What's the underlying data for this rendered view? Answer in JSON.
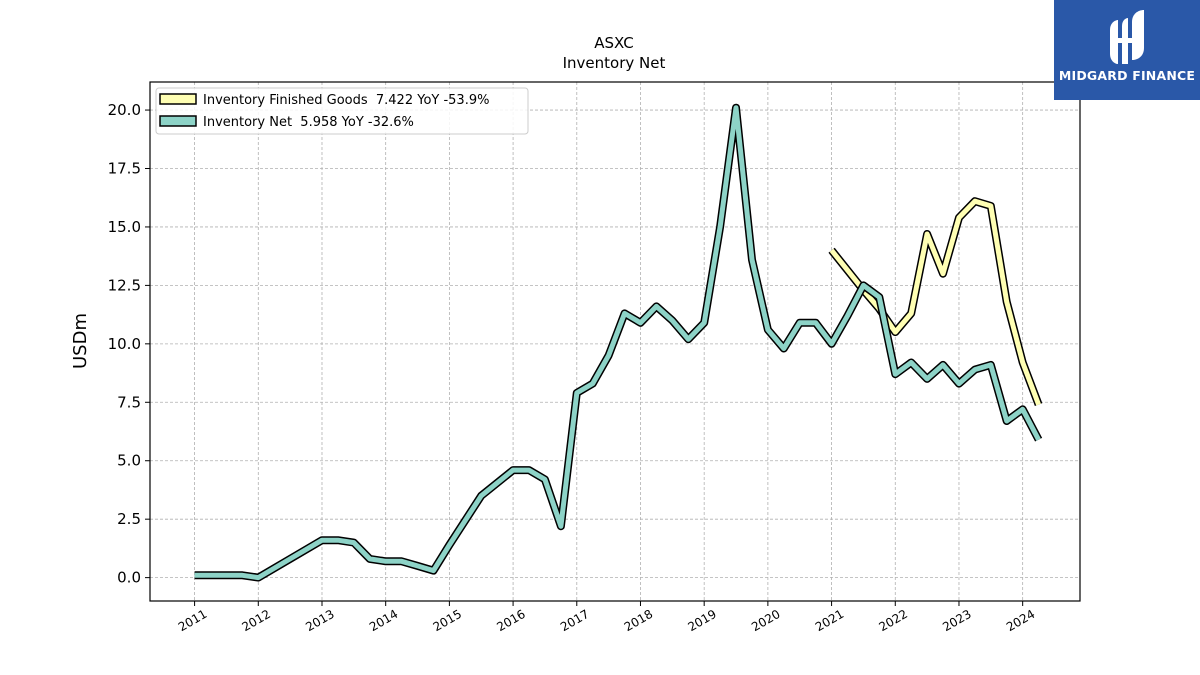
{
  "chart_data": {
    "type": "line",
    "title": "ASXC",
    "subtitle": "Inventory Net",
    "xlabel": "",
    "ylabel": "USDm",
    "ylim": [
      -1.0,
      21.2
    ],
    "xlim": [
      2010.3,
      2024.9
    ],
    "y_ticks": [
      0.0,
      2.5,
      5.0,
      7.5,
      10.0,
      12.5,
      15.0,
      17.5,
      20.0
    ],
    "y_tick_labels": [
      "0.0",
      "2.5",
      "5.0",
      "7.5",
      "10.0",
      "12.5",
      "15.0",
      "17.5",
      "20.0"
    ],
    "x_ticks": [
      2011,
      2012,
      2013,
      2014,
      2015,
      2016,
      2017,
      2018,
      2019,
      2020,
      2021,
      2022,
      2023,
      2024
    ],
    "x_tick_labels": [
      "2011",
      "2012",
      "2013",
      "2014",
      "2015",
      "2016",
      "2017",
      "2018",
      "2019",
      "2020",
      "2021",
      "2022",
      "2023",
      "2024"
    ],
    "grid": true,
    "legend_position": "top-left",
    "series": [
      {
        "name": "Inventory Finished Goods  7.422 YoY -53.9%",
        "color": "#ffffb3",
        "points": [
          [
            2021.0,
            14.0
          ],
          [
            2021.5,
            12.3
          ],
          [
            2021.75,
            11.5
          ],
          [
            2022.0,
            10.5
          ],
          [
            2022.25,
            11.3
          ],
          [
            2022.5,
            14.7
          ],
          [
            2022.75,
            13.0
          ],
          [
            2023.0,
            15.4
          ],
          [
            2023.25,
            16.1
          ],
          [
            2023.5,
            15.9
          ],
          [
            2023.75,
            11.8
          ],
          [
            2024.0,
            9.2
          ],
          [
            2024.25,
            7.4
          ]
        ]
      },
      {
        "name": "Inventory Net  5.958 YoY -32.6%",
        "color": "#8dd3c7",
        "points": [
          [
            2011.0,
            0.1
          ],
          [
            2011.25,
            0.1
          ],
          [
            2011.5,
            0.1
          ],
          [
            2011.75,
            0.1
          ],
          [
            2012.0,
            0.0
          ],
          [
            2012.5,
            0.8
          ],
          [
            2013.0,
            1.6
          ],
          [
            2013.25,
            1.6
          ],
          [
            2013.5,
            1.5
          ],
          [
            2013.75,
            0.8
          ],
          [
            2014.0,
            0.7
          ],
          [
            2014.25,
            0.7
          ],
          [
            2014.5,
            0.5
          ],
          [
            2014.75,
            0.3
          ],
          [
            2015.0,
            1.4
          ],
          [
            2015.5,
            3.5
          ],
          [
            2016.0,
            4.6
          ],
          [
            2016.25,
            4.6
          ],
          [
            2016.5,
            4.2
          ],
          [
            2016.75,
            2.2
          ],
          [
            2017.0,
            7.9
          ],
          [
            2017.25,
            8.3
          ],
          [
            2017.5,
            9.5
          ],
          [
            2017.75,
            11.3
          ],
          [
            2018.0,
            10.9
          ],
          [
            2018.25,
            11.6
          ],
          [
            2018.5,
            11.0
          ],
          [
            2018.75,
            10.2
          ],
          [
            2019.0,
            10.9
          ],
          [
            2019.25,
            15.0
          ],
          [
            2019.5,
            20.1
          ],
          [
            2019.75,
            13.6
          ],
          [
            2020.0,
            10.6
          ],
          [
            2020.25,
            9.8
          ],
          [
            2020.5,
            10.9
          ],
          [
            2020.75,
            10.9
          ],
          [
            2021.0,
            10.0
          ],
          [
            2021.25,
            11.2
          ],
          [
            2021.5,
            12.5
          ],
          [
            2021.75,
            12.0
          ],
          [
            2022.0,
            8.7
          ],
          [
            2022.25,
            9.2
          ],
          [
            2022.5,
            8.5
          ],
          [
            2022.75,
            9.1
          ],
          [
            2023.0,
            8.3
          ],
          [
            2023.25,
            8.9
          ],
          [
            2023.5,
            9.1
          ],
          [
            2023.75,
            6.7
          ],
          [
            2024.0,
            7.2
          ],
          [
            2024.25,
            5.9
          ]
        ]
      }
    ]
  },
  "brand": {
    "name": "MIDGARD FINANCE",
    "logo_color": "#2a58a8"
  }
}
